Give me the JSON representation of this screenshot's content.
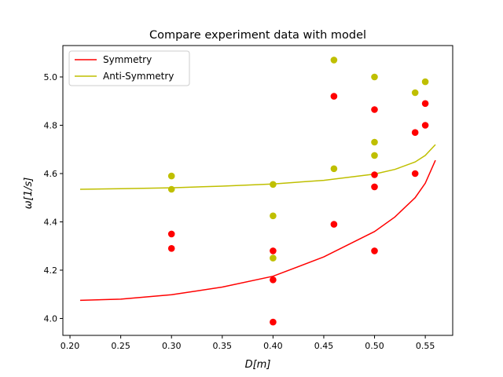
{
  "chart_data": {
    "type": "scatter",
    "title": "Compare experiment data with model",
    "xlabel": "D[m]",
    "ylabel": "ω[1/s]",
    "xlim": [
      0.193,
      0.577
    ],
    "ylim": [
      3.93,
      5.13
    ],
    "xticks": [
      0.2,
      0.25,
      0.3,
      0.35,
      0.4,
      0.45,
      0.5,
      0.55
    ],
    "xtick_labels": [
      "0.20",
      "0.25",
      "0.30",
      "0.35",
      "0.40",
      "0.45",
      "0.50",
      "0.55"
    ],
    "yticks": [
      4.0,
      4.2,
      4.4,
      4.6,
      4.8,
      5.0
    ],
    "ytick_labels": [
      "4.0",
      "4.2",
      "4.4",
      "4.6",
      "4.8",
      "5.0"
    ],
    "grid": false,
    "legend_placement": "upper left",
    "lines": [
      {
        "name": "Symmetry",
        "color": "#ff0000",
        "x": [
          0.21,
          0.25,
          0.3,
          0.35,
          0.4,
          0.45,
          0.5,
          0.52,
          0.54,
          0.55,
          0.56
        ],
        "y": [
          4.075,
          4.08,
          4.098,
          4.13,
          4.175,
          4.255,
          4.36,
          4.42,
          4.5,
          4.56,
          4.655
        ]
      },
      {
        "name": "Anti-Symmetry",
        "color": "#bfbf00",
        "x": [
          0.21,
          0.25,
          0.3,
          0.35,
          0.4,
          0.45,
          0.5,
          0.52,
          0.54,
          0.55,
          0.56
        ],
        "y": [
          4.535,
          4.537,
          4.541,
          4.548,
          4.557,
          4.572,
          4.598,
          4.617,
          4.648,
          4.675,
          4.72
        ]
      }
    ],
    "scatter": [
      {
        "color": "#ff0000",
        "x": [
          0.3,
          0.3,
          0.4,
          0.4,
          0.4,
          0.46,
          0.46,
          0.5,
          0.5,
          0.5,
          0.5,
          0.54,
          0.54,
          0.55,
          0.55
        ],
        "y": [
          4.35,
          4.29,
          4.28,
          4.16,
          3.985,
          4.92,
          4.39,
          4.865,
          4.595,
          4.545,
          4.28,
          4.77,
          4.6,
          4.89,
          4.8
        ]
      },
      {
        "color": "#bfbf00",
        "x": [
          0.3,
          0.3,
          0.4,
          0.4,
          0.4,
          0.46,
          0.46,
          0.5,
          0.5,
          0.5,
          0.54,
          0.55
        ],
        "y": [
          4.59,
          4.535,
          4.555,
          4.425,
          4.25,
          5.07,
          4.62,
          5.0,
          4.73,
          4.675,
          4.935,
          4.98
        ]
      }
    ]
  }
}
